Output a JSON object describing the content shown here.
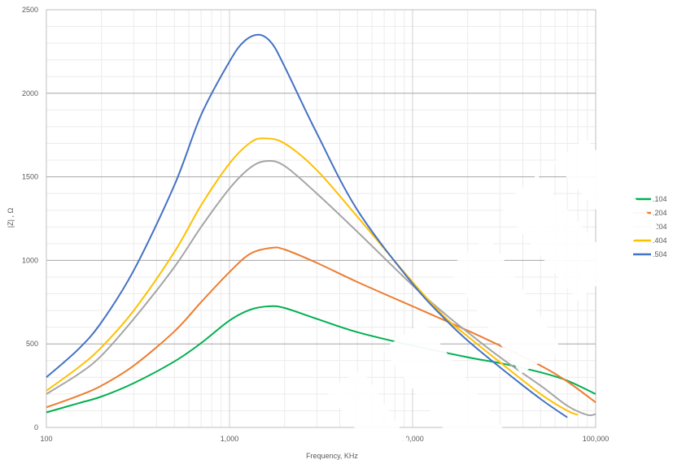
{
  "chart_data": {
    "type": "line",
    "title": "",
    "xlabel": "Frequency, KHz",
    "ylabel": "|Z| , Ω",
    "x_scale": "log",
    "xlim": [
      100,
      100000
    ],
    "ylim": [
      0,
      2500
    ],
    "x_ticks": [
      100,
      1000,
      10000,
      100000
    ],
    "x_tick_labels": [
      "100",
      "1,000",
      "10,000",
      "100,000"
    ],
    "y_ticks": [
      0,
      500,
      1000,
      1500,
      2000,
      2500
    ],
    "y_tick_labels": [
      "0",
      "500",
      "1000",
      "1500",
      "2000",
      "2500"
    ],
    "grid": true,
    "legend_position": "right",
    "series": [
      {
        "name": ".104",
        "color": "#00b050",
        "x": [
          100,
          150,
          200,
          300,
          500,
          700,
          1000,
          1300,
          1650,
          2000,
          3000,
          5000,
          10000,
          20000,
          30000,
          50000,
          70000,
          100000
        ],
        "y": [
          90,
          145,
          185,
          265,
          395,
          505,
          640,
          705,
          725,
          715,
          650,
          570,
          490,
          420,
          385,
          330,
          280,
          200
        ]
      },
      {
        "name": ".204",
        "color": "#ed7d31",
        "x": [
          100,
          150,
          200,
          300,
          500,
          700,
          1000,
          1300,
          1700,
          2000,
          3000,
          5000,
          10000,
          20000,
          30000,
          50000,
          70000,
          100000
        ],
        "y": [
          120,
          190,
          250,
          370,
          575,
          750,
          930,
          1040,
          1075,
          1065,
          985,
          870,
          725,
          580,
          490,
          370,
          275,
          150
        ]
      },
      {
        "name": ".304",
        "color": "#a5a5a5",
        "x": [
          100,
          150,
          200,
          300,
          500,
          700,
          1000,
          1300,
          1600,
          2000,
          3000,
          5000,
          10000,
          15000,
          20000,
          30000,
          50000,
          70000,
          90000,
          100000
        ],
        "y": [
          200,
          320,
          430,
          650,
          960,
          1200,
          1430,
          1555,
          1595,
          1565,
          1400,
          1170,
          850,
          680,
          570,
          420,
          250,
          130,
          75,
          80
        ]
      },
      {
        "name": ".404",
        "color": "#ffc000",
        "x": [
          100,
          150,
          200,
          300,
          500,
          700,
          1000,
          1300,
          1550,
          2000,
          3000,
          5000,
          10000,
          15000,
          20000,
          30000,
          50000,
          70000,
          80000
        ],
        "y": [
          220,
          360,
          480,
          700,
          1050,
          1330,
          1580,
          1705,
          1730,
          1700,
          1540,
          1260,
          870,
          660,
          545,
          390,
          200,
          100,
          75
        ]
      },
      {
        "name": ".504",
        "color": "#4472c4",
        "x": [
          100,
          150,
          200,
          300,
          500,
          700,
          1000,
          1200,
          1450,
          1700,
          2000,
          3000,
          5000,
          10000,
          15000,
          20000,
          30000,
          50000,
          70000
        ],
        "y": [
          300,
          470,
          630,
          940,
          1450,
          1870,
          2190,
          2310,
          2350,
          2300,
          2160,
          1760,
          1300,
          860,
          650,
          520,
          360,
          170,
          60
        ]
      }
    ]
  }
}
